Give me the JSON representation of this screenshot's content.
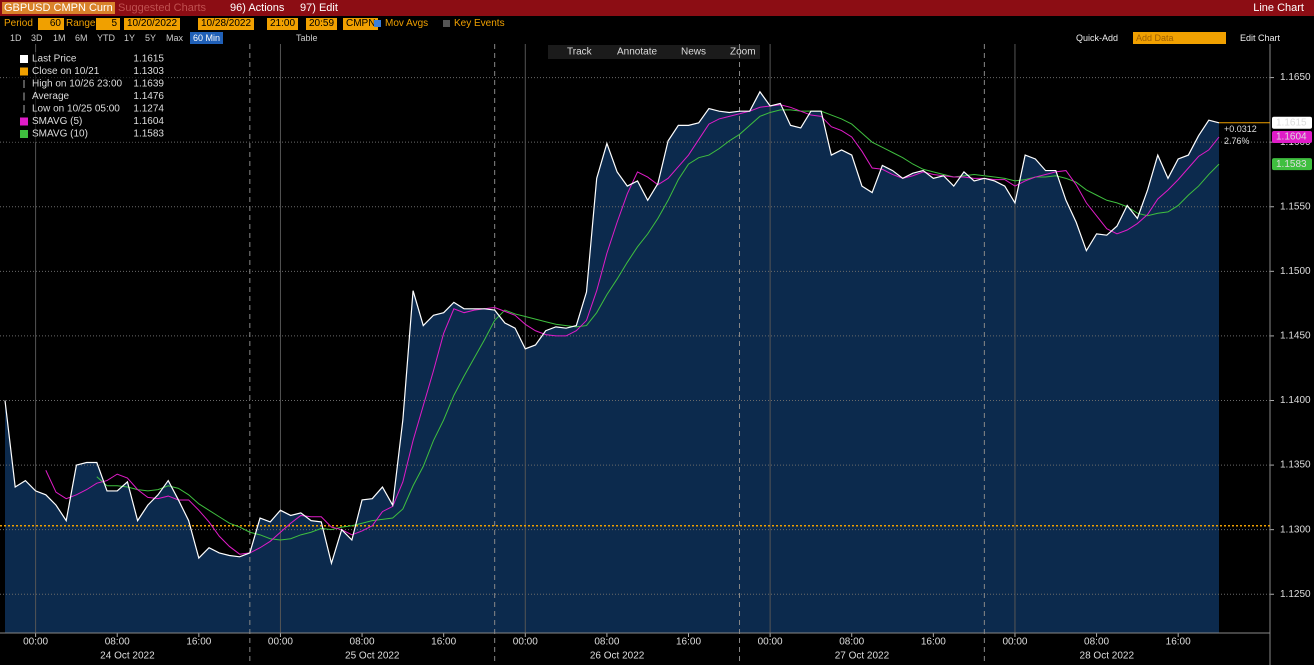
{
  "header": {
    "security": "GBPUSD CMPN Curn",
    "suggested": "Suggested Charts",
    "actions": "96) Actions",
    "edit": "97) Edit",
    "view": "Line Chart"
  },
  "settings": {
    "period_label": "Period",
    "period": "60",
    "range_label": "Range",
    "range": "5",
    "start_date": "10/20/2022",
    "end_date": "10/28/2022",
    "start_time": "21:00",
    "end_time": "20:59",
    "source": "CMPN",
    "mov_avgs": "Mov Avgs",
    "key_events": "Key Events"
  },
  "toolbar": {
    "ranges": [
      "1D",
      "3D",
      "1M",
      "6M",
      "YTD",
      "1Y",
      "5Y",
      "Max"
    ],
    "interval": "60 Min",
    "table": "Table",
    "quick_add": "Quick-Add",
    "add_data": "Add Data",
    "edit_chart": "Edit Chart"
  },
  "chart_tools": [
    "Track",
    "Annotate",
    "News",
    "Zoom"
  ],
  "chart_data": {
    "type": "line",
    "xlim": [
      0,
      124
    ],
    "ylim": [
      1.122,
      1.1676
    ],
    "yticks": [
      {
        "value": 1.125,
        "label": "1.1250"
      },
      {
        "value": 1.13,
        "label": "1.1300"
      },
      {
        "value": 1.135,
        "label": "1.1350"
      },
      {
        "value": 1.14,
        "label": "1.1400"
      },
      {
        "value": 1.145,
        "label": "1.1450"
      },
      {
        "value": 1.15,
        "label": "1.1500"
      },
      {
        "value": 1.155,
        "label": "1.1550"
      },
      {
        "value": 1.16,
        "label": "1.1600"
      },
      {
        "value": 1.165,
        "label": "1.1650"
      }
    ],
    "xticks": [
      {
        "value": 3,
        "label": "00:00"
      },
      {
        "value": 11,
        "label": "08:00"
      },
      {
        "value": 19,
        "label": "16:00"
      },
      {
        "value": 27,
        "label": "00:00"
      },
      {
        "value": 35,
        "label": "08:00"
      },
      {
        "value": 43,
        "label": "16:00"
      },
      {
        "value": 51,
        "label": "00:00"
      },
      {
        "value": 59,
        "label": "08:00"
      },
      {
        "value": 67,
        "label": "16:00"
      },
      {
        "value": 75,
        "label": "00:00"
      },
      {
        "value": 83,
        "label": "08:00"
      },
      {
        "value": 91,
        "label": "16:00"
      },
      {
        "value": 99,
        "label": "00:00"
      },
      {
        "value": 107,
        "label": "08:00"
      },
      {
        "value": 115,
        "label": "16:00"
      }
    ],
    "xdates": [
      {
        "value": 12,
        "label": "24 Oct 2022"
      },
      {
        "value": 36,
        "label": "25 Oct 2022"
      },
      {
        "value": 60,
        "label": "26 Oct 2022"
      },
      {
        "value": 84,
        "label": "27 Oct 2022"
      },
      {
        "value": 108,
        "label": "28 Oct 2022"
      }
    ],
    "grid": true,
    "series": [
      {
        "name": "Last Price",
        "color": "#ffffff",
        "fill": "#0c2a4d",
        "values": [
          1.14,
          1.1333,
          1.1338,
          1.133,
          1.1327,
          1.1319,
          1.1307,
          1.135,
          1.1352,
          1.1352,
          1.133,
          1.133,
          1.1337,
          1.1307,
          1.1319,
          1.1327,
          1.1338,
          1.1323,
          1.1307,
          1.1278,
          1.1286,
          1.1282,
          1.128,
          1.1279,
          1.1282,
          1.1309,
          1.1306,
          1.1315,
          1.1311,
          1.1313,
          1.1307,
          1.1306,
          1.1274,
          1.13,
          1.1292,
          1.1323,
          1.1324,
          1.1333,
          1.1319,
          1.1385,
          1.1485,
          1.1458,
          1.1466,
          1.1468,
          1.1476,
          1.1471,
          1.1471,
          1.1471,
          1.147,
          1.146,
          1.1456,
          1.144,
          1.1443,
          1.1454,
          1.1457,
          1.1456,
          1.1458,
          1.1484,
          1.1572,
          1.1599,
          1.1577,
          1.1566,
          1.157,
          1.1555,
          1.1568,
          1.1601,
          1.1613,
          1.1613,
          1.1615,
          1.1626,
          1.1624,
          1.1623,
          1.1624,
          1.1624,
          1.1639,
          1.1628,
          1.163,
          1.1613,
          1.1611,
          1.1624,
          1.1624,
          1.159,
          1.1594,
          1.159,
          1.1566,
          1.1561,
          1.1582,
          1.1578,
          1.1572,
          1.1576,
          1.1578,
          1.1572,
          1.1574,
          1.1566,
          1.1577,
          1.157,
          1.1572,
          1.157,
          1.1566,
          1.1553,
          1.159,
          1.1587,
          1.1578,
          1.1578,
          1.1555,
          1.1538,
          1.1516,
          1.1529,
          1.1528,
          1.1535,
          1.1551,
          1.1541,
          1.1563,
          1.159,
          1.1572,
          1.1587,
          1.159,
          1.1605,
          1.1617,
          1.1615
        ]
      },
      {
        "name": "SMAVG (5)",
        "color": "#e01cc8",
        "values": [
          null,
          null,
          null,
          null,
          1.1346,
          1.1329,
          1.1324,
          1.1327,
          1.1331,
          1.1336,
          1.1338,
          1.1343,
          1.134,
          1.1331,
          1.1325,
          1.1324,
          1.1326,
          1.1323,
          1.1323,
          1.1315,
          1.1306,
          1.1295,
          1.1287,
          1.1281,
          1.1282,
          1.1286,
          1.1291,
          1.1298,
          1.1305,
          1.1311,
          1.131,
          1.131,
          1.1302,
          1.13,
          1.1296,
          1.1299,
          1.1303,
          1.1314,
          1.1318,
          1.1337,
          1.1369,
          1.1396,
          1.1423,
          1.1452,
          1.1471,
          1.1468,
          1.147,
          1.1471,
          1.1472,
          1.1469,
          1.1466,
          1.1459,
          1.1454,
          1.1451,
          1.145,
          1.145,
          1.1454,
          1.1462,
          1.1485,
          1.1514,
          1.1538,
          1.156,
          1.1577,
          1.1573,
          1.1567,
          1.1572,
          1.1581,
          1.159,
          1.1602,
          1.1614,
          1.1618,
          1.162,
          1.1622,
          1.1624,
          1.1627,
          1.1628,
          1.1629,
          1.1627,
          1.1624,
          1.1621,
          1.162,
          1.1612,
          1.1609,
          1.1604,
          1.1593,
          1.158,
          1.1579,
          1.1575,
          1.1572,
          1.1574,
          1.1577,
          1.1575,
          1.1574,
          1.1573,
          1.1573,
          1.1572,
          1.1572,
          1.1571,
          1.1571,
          1.1566,
          1.157,
          1.1573,
          1.1575,
          1.1577,
          1.1578,
          1.1567,
          1.1553,
          1.1543,
          1.1533,
          1.1529,
          1.1532,
          1.1537,
          1.1544,
          1.1556,
          1.1563,
          1.1571,
          1.158,
          1.1589,
          1.1594,
          1.1604
        ]
      },
      {
        "name": "SMAVG (10)",
        "color": "#3fbf3f",
        "values": [
          null,
          null,
          null,
          null,
          null,
          null,
          null,
          null,
          null,
          1.1341,
          1.1334,
          1.1334,
          1.1333,
          1.1331,
          1.133,
          1.1331,
          1.1334,
          1.1332,
          1.1327,
          1.132,
          1.1315,
          1.131,
          1.1305,
          1.1302,
          1.1298,
          1.1296,
          1.1293,
          1.1292,
          1.1293,
          1.1296,
          1.1298,
          1.1301,
          1.13,
          1.1302,
          1.1303,
          1.1305,
          1.1307,
          1.1308,
          1.1309,
          1.1316,
          1.1334,
          1.1349,
          1.1369,
          1.1385,
          1.1404,
          1.1419,
          1.1433,
          1.1447,
          1.1462,
          1.147,
          1.1467,
          1.1465,
          1.1463,
          1.1461,
          1.1459,
          1.1458,
          1.1457,
          1.1458,
          1.1468,
          1.1482,
          1.1494,
          1.1507,
          1.1519,
          1.1529,
          1.1541,
          1.1555,
          1.1571,
          1.1583,
          1.1588,
          1.159,
          1.1595,
          1.1601,
          1.1606,
          1.1613,
          1.162,
          1.1623,
          1.1625,
          1.1625,
          1.1624,
          1.1624,
          1.1624,
          1.1621,
          1.1618,
          1.1614,
          1.1607,
          1.16,
          1.1596,
          1.1592,
          1.1588,
          1.1583,
          1.1579,
          1.1577,
          1.1575,
          1.1573,
          1.1574,
          1.1575,
          1.1574,
          1.1573,
          1.1572,
          1.157,
          1.1571,
          1.1573,
          1.1573,
          1.1574,
          1.1572,
          1.1569,
          1.1563,
          1.1559,
          1.1555,
          1.1553,
          1.155,
          1.1545,
          1.1543,
          1.1545,
          1.1546,
          1.1551,
          1.1559,
          1.1566,
          1.1575,
          1.1583
        ]
      }
    ],
    "stats": [
      {
        "name": "Close on 10/21",
        "value": 1.1303,
        "color": "#f0a000"
      },
      {
        "name": "High on 10/26 23:00",
        "value": 1.1639
      },
      {
        "name": "Average",
        "value": 1.1476
      },
      {
        "name": "Low on 10/25 05:00",
        "value": 1.1274
      }
    ],
    "change": {
      "value": 0.0312,
      "label": "+0.0312"
    },
    "change_pct": {
      "value": 2.76,
      "label": "2.76%"
    }
  }
}
